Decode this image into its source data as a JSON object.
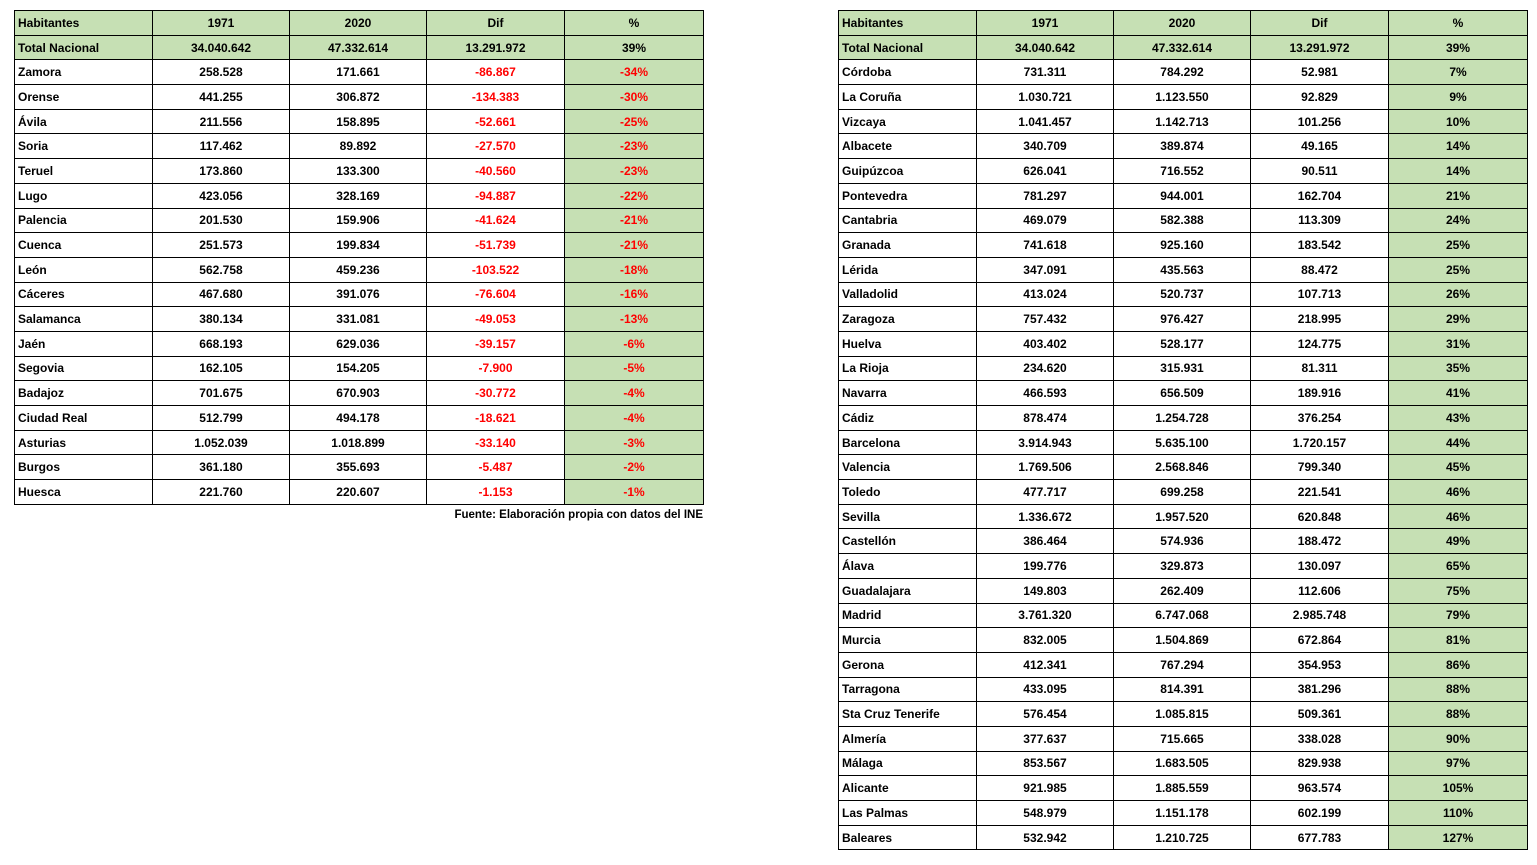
{
  "footer": {
    "text": "Fuente: Elaboración propia con datos del INE"
  },
  "colors": {
    "green_bg": "#c6e0b4",
    "negative_text": "#ff0000",
    "border": "#000000"
  },
  "chart_data": [
    {
      "type": "table",
      "columns": [
        "Habitantes",
        "1971",
        "2020",
        "Dif",
        "%"
      ],
      "total_row": [
        "Total Nacional",
        "34.040.642",
        "47.332.614",
        "13.291.972",
        "39%"
      ],
      "negative_values": true,
      "rows": [
        [
          "Zamora",
          "258.528",
          "171.661",
          "-86.867",
          "-34%"
        ],
        [
          "Orense",
          "441.255",
          "306.872",
          "-134.383",
          "-30%"
        ],
        [
          "Ávila",
          "211.556",
          "158.895",
          "-52.661",
          "-25%"
        ],
        [
          "Soria",
          "117.462",
          "89.892",
          "-27.570",
          "-23%"
        ],
        [
          "Teruel",
          "173.860",
          "133.300",
          "-40.560",
          "-23%"
        ],
        [
          "Lugo",
          "423.056",
          "328.169",
          "-94.887",
          "-22%"
        ],
        [
          "Palencia",
          "201.530",
          "159.906",
          "-41.624",
          "-21%"
        ],
        [
          "Cuenca",
          "251.573",
          "199.834",
          "-51.739",
          "-21%"
        ],
        [
          "León",
          "562.758",
          "459.236",
          "-103.522",
          "-18%"
        ],
        [
          "Cáceres",
          "467.680",
          "391.076",
          "-76.604",
          "-16%"
        ],
        [
          "Salamanca",
          "380.134",
          "331.081",
          "-49.053",
          "-13%"
        ],
        [
          "Jaén",
          "668.193",
          "629.036",
          "-39.157",
          "-6%"
        ],
        [
          "Segovia",
          "162.105",
          "154.205",
          "-7.900",
          "-5%"
        ],
        [
          "Badajoz",
          "701.675",
          "670.903",
          "-30.772",
          "-4%"
        ],
        [
          "Ciudad Real",
          "512.799",
          "494.178",
          "-18.621",
          "-4%"
        ],
        [
          "Asturias",
          "1.052.039",
          "1.018.899",
          "-33.140",
          "-3%"
        ],
        [
          "Burgos",
          "361.180",
          "355.693",
          "-5.487",
          "-2%"
        ],
        [
          "Huesca",
          "221.760",
          "220.607",
          "-1.153",
          "-1%"
        ]
      ]
    },
    {
      "type": "table",
      "columns": [
        "Habitantes",
        "1971",
        "2020",
        "Dif",
        "%"
      ],
      "total_row": [
        "Total Nacional",
        "34.040.642",
        "47.332.614",
        "13.291.972",
        "39%"
      ],
      "negative_values": false,
      "rows": [
        [
          "Córdoba",
          "731.311",
          "784.292",
          "52.981",
          "7%"
        ],
        [
          "La Coruña",
          "1.030.721",
          "1.123.550",
          "92.829",
          "9%"
        ],
        [
          "Vizcaya",
          "1.041.457",
          "1.142.713",
          "101.256",
          "10%"
        ],
        [
          "Albacete",
          "340.709",
          "389.874",
          "49.165",
          "14%"
        ],
        [
          "Guipúzcoa",
          "626.041",
          "716.552",
          "90.511",
          "14%"
        ],
        [
          "Pontevedra",
          "781.297",
          "944.001",
          "162.704",
          "21%"
        ],
        [
          "Cantabria",
          "469.079",
          "582.388",
          "113.309",
          "24%"
        ],
        [
          "Granada",
          "741.618",
          "925.160",
          "183.542",
          "25%"
        ],
        [
          "Lérida",
          "347.091",
          "435.563",
          "88.472",
          "25%"
        ],
        [
          "Valladolid",
          "413.024",
          "520.737",
          "107.713",
          "26%"
        ],
        [
          "Zaragoza",
          "757.432",
          "976.427",
          "218.995",
          "29%"
        ],
        [
          "Huelva",
          "403.402",
          "528.177",
          "124.775",
          "31%"
        ],
        [
          "La Rioja",
          "234.620",
          "315.931",
          "81.311",
          "35%"
        ],
        [
          "Navarra",
          "466.593",
          "656.509",
          "189.916",
          "41%"
        ],
        [
          "Cádiz",
          "878.474",
          "1.254.728",
          "376.254",
          "43%"
        ],
        [
          "Barcelona",
          "3.914.943",
          "5.635.100",
          "1.720.157",
          "44%"
        ],
        [
          "Valencia",
          "1.769.506",
          "2.568.846",
          "799.340",
          "45%"
        ],
        [
          "Toledo",
          "477.717",
          "699.258",
          "221.541",
          "46%"
        ],
        [
          "Sevilla",
          "1.336.672",
          "1.957.520",
          "620.848",
          "46%"
        ],
        [
          "Castellón",
          "386.464",
          "574.936",
          "188.472",
          "49%"
        ],
        [
          "Álava",
          "199.776",
          "329.873",
          "130.097",
          "65%"
        ],
        [
          "Guadalajara",
          "149.803",
          "262.409",
          "112.606",
          "75%"
        ],
        [
          "Madrid",
          "3.761.320",
          "6.747.068",
          "2.985.748",
          "79%"
        ],
        [
          "Murcia",
          "832.005",
          "1.504.869",
          "672.864",
          "81%"
        ],
        [
          "Gerona",
          "412.341",
          "767.294",
          "354.953",
          "86%"
        ],
        [
          "Tarragona",
          "433.095",
          "814.391",
          "381.296",
          "88%"
        ],
        [
          "Sta Cruz Tenerife",
          "576.454",
          "1.085.815",
          "509.361",
          "88%"
        ],
        [
          "Almería",
          "377.637",
          "715.665",
          "338.028",
          "90%"
        ],
        [
          "Málaga",
          "853.567",
          "1.683.505",
          "829.938",
          "97%"
        ],
        [
          "Alicante",
          "921.985",
          "1.885.559",
          "963.574",
          "105%"
        ],
        [
          "Las Palmas",
          "548.979",
          "1.151.178",
          "602.199",
          "110%"
        ],
        [
          "Baleares",
          "532.942",
          "1.210.725",
          "677.783",
          "127%"
        ]
      ]
    }
  ]
}
